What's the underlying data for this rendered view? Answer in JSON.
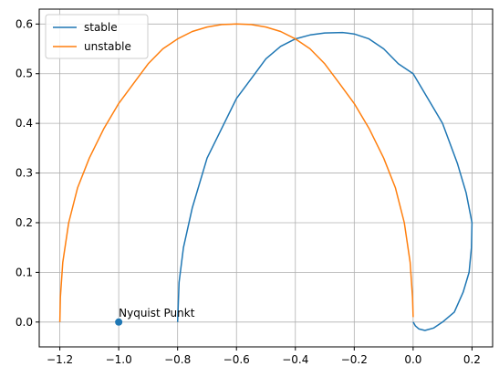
{
  "chart_data": {
    "type": "line",
    "title": "",
    "xlabel": "",
    "ylabel": "",
    "xlim": [
      -1.27,
      0.27
    ],
    "ylim": [
      -0.05,
      0.63
    ],
    "grid": true,
    "legend_position": "upper-left",
    "x_ticks": [
      -1.2,
      -1.0,
      -0.8,
      -0.6,
      -0.4,
      -0.2,
      0.0,
      0.2
    ],
    "x_tick_labels": [
      "−1.2",
      "−1.0",
      "−0.8",
      "−0.6",
      "−0.4",
      "−0.2",
      "0.0",
      "0.2"
    ],
    "y_ticks": [
      0.0,
      0.1,
      0.2,
      0.3,
      0.4,
      0.5,
      0.6
    ],
    "y_tick_labels": [
      "0.0",
      "0.1",
      "0.2",
      "0.3",
      "0.4",
      "0.5",
      "0.6"
    ],
    "series": [
      {
        "name": "stable",
        "color": "#1f77b4",
        "points": [
          [
            -0.8,
            0.0
          ],
          [
            -0.795,
            0.08
          ],
          [
            -0.78,
            0.15
          ],
          [
            -0.75,
            0.23
          ],
          [
            -0.7,
            0.33
          ],
          [
            -0.65,
            0.39
          ],
          [
            -0.6,
            0.45
          ],
          [
            -0.55,
            0.49
          ],
          [
            -0.5,
            0.53
          ],
          [
            -0.45,
            0.555
          ],
          [
            -0.4,
            0.57
          ],
          [
            -0.35,
            0.578
          ],
          [
            -0.3,
            0.582
          ],
          [
            -0.24,
            0.583
          ],
          [
            -0.2,
            0.58
          ],
          [
            -0.15,
            0.57
          ],
          [
            -0.1,
            0.55
          ],
          [
            -0.05,
            0.52
          ],
          [
            0.0,
            0.5
          ],
          [
            0.05,
            0.45
          ],
          [
            0.1,
            0.4
          ],
          [
            0.15,
            0.32
          ],
          [
            0.18,
            0.26
          ],
          [
            0.2,
            0.2
          ],
          [
            0.198,
            0.15
          ],
          [
            0.19,
            0.1
          ],
          [
            0.17,
            0.06
          ],
          [
            0.14,
            0.02
          ],
          [
            0.1,
            0.0
          ],
          [
            0.07,
            -0.012
          ],
          [
            0.04,
            -0.017
          ],
          [
            0.02,
            -0.014
          ],
          [
            0.008,
            -0.008
          ],
          [
            0.0,
            0.0
          ]
        ]
      },
      {
        "name": "unstable",
        "color": "#ff7f0e",
        "points": [
          [
            -1.2,
            0.0
          ],
          [
            -1.198,
            0.05
          ],
          [
            -1.19,
            0.12
          ],
          [
            -1.17,
            0.2
          ],
          [
            -1.14,
            0.27
          ],
          [
            -1.1,
            0.33
          ],
          [
            -1.05,
            0.39
          ],
          [
            -1.0,
            0.44
          ],
          [
            -0.95,
            0.48
          ],
          [
            -0.9,
            0.52
          ],
          [
            -0.85,
            0.55
          ],
          [
            -0.8,
            0.57
          ],
          [
            -0.75,
            0.585
          ],
          [
            -0.7,
            0.594
          ],
          [
            -0.65,
            0.599
          ],
          [
            -0.6,
            0.6
          ],
          [
            -0.55,
            0.599
          ],
          [
            -0.5,
            0.594
          ],
          [
            -0.45,
            0.585
          ],
          [
            -0.4,
            0.57
          ],
          [
            -0.35,
            0.55
          ],
          [
            -0.3,
            0.52
          ],
          [
            -0.25,
            0.48
          ],
          [
            -0.2,
            0.44
          ],
          [
            -0.15,
            0.39
          ],
          [
            -0.1,
            0.33
          ],
          [
            -0.06,
            0.27
          ],
          [
            -0.03,
            0.2
          ],
          [
            -0.01,
            0.12
          ],
          [
            -0.002,
            0.05
          ],
          [
            0.0,
            0.01
          ]
        ]
      }
    ],
    "marker_point": {
      "x": -1.0,
      "y": 0.0,
      "color": "#1f77b4"
    },
    "annotation": {
      "text": "Nyquist Punkt",
      "x": -1.0,
      "y": 0.0
    }
  }
}
